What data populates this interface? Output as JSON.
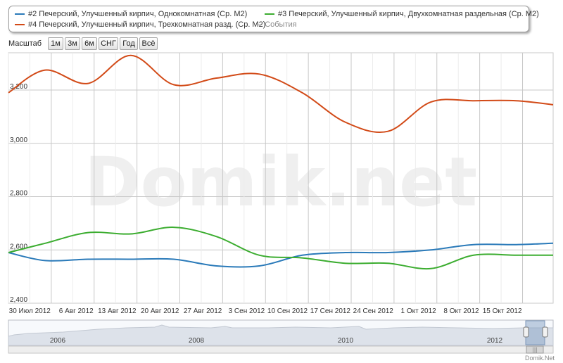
{
  "legend": {
    "items": [
      {
        "label": "#2 Печерский, Улучшенный кирпич, Однокомнатная (Ср. М2)",
        "color": "#2a7ab9"
      },
      {
        "label": "#3 Печерский, Улучшенный кирпич, Двухкомнатная раздельная (Ср. М2)",
        "color": "#3cad30"
      },
      {
        "label": "#4 Печерский, Улучшенный кирпич, Трехкомнатная разд. (Ср. М2)",
        "color": "#d24a17"
      }
    ],
    "events_label": "События",
    "events_color": "#8a8a8a"
  },
  "toolbar": {
    "zoom_label": "Масштаб",
    "buttons": [
      "1м",
      "3м",
      "6м",
      "СНГ",
      "Год",
      "Всё"
    ]
  },
  "watermark": "Domik.net",
  "credit": "Domik.Net",
  "navigator": {
    "years": [
      "2006",
      "2008",
      "2010",
      "2012"
    ],
    "scroll_glyph": "|||"
  },
  "chart_data": {
    "type": "line",
    "title": "",
    "xlabel": "",
    "ylabel": "",
    "ylim": [
      2400,
      3340
    ],
    "xlim": [
      "2012-07-23",
      "2012-10-20"
    ],
    "yticks": [
      2400,
      2600,
      2800,
      3000,
      3200
    ],
    "ytick_labels": [
      "2,400",
      "2,600",
      "2,800",
      "3,000",
      "3,200"
    ],
    "xticks": [
      "2012-07-30",
      "2012-08-06",
      "2012-08-13",
      "2012-08-20",
      "2012-08-27",
      "2012-09-03",
      "2012-09-10",
      "2012-09-17",
      "2012-09-24",
      "2012-10-01",
      "2012-10-08",
      "2012-10-15"
    ],
    "xtick_labels": [
      "30 Июл 2012",
      "6 Авг 2012",
      "13 Авг 2012",
      "20 Авг 2012",
      "27 Авг 2012",
      "3 Сен 2012",
      "10 Сен 2012",
      "17 Сен 2012",
      "24 Сен 2012",
      "1 Окт 2012",
      "8 Окт 2012",
      "15 Окт 2012"
    ],
    "grid": true,
    "legend_position": "top",
    "series": [
      {
        "name": "#2 Печерский, Улучшенный кирпич, Однокомнатная (Ср. М2)",
        "color": "#2a7ab9",
        "x": [
          "2012-07-23",
          "2012-07-29",
          "2012-08-05",
          "2012-08-12",
          "2012-08-19",
          "2012-08-26",
          "2012-09-02",
          "2012-09-09",
          "2012-09-16",
          "2012-09-23",
          "2012-09-30",
          "2012-10-07",
          "2012-10-14",
          "2012-10-20"
        ],
        "values": [
          2590,
          2560,
          2565,
          2565,
          2565,
          2540,
          2540,
          2580,
          2590,
          2590,
          2600,
          2620,
          2620,
          2625
        ]
      },
      {
        "name": "#3 Печерский, Улучшенный кирпич, Двухкомнатная раздельная (Ср. М2)",
        "color": "#3cad30",
        "x": [
          "2012-07-23",
          "2012-07-29",
          "2012-08-05",
          "2012-08-12",
          "2012-08-19",
          "2012-08-26",
          "2012-09-02",
          "2012-09-09",
          "2012-09-16",
          "2012-09-23",
          "2012-09-30",
          "2012-10-07",
          "2012-10-14",
          "2012-10-20"
        ],
        "values": [
          2590,
          2625,
          2665,
          2660,
          2685,
          2650,
          2580,
          2570,
          2550,
          2550,
          2530,
          2580,
          2580,
          2580
        ]
      },
      {
        "name": "#4 Печерский, Улучшенный кирпич, Трехкомнатная разд. (Ср. М2)",
        "color": "#d24a17",
        "x": [
          "2012-07-23",
          "2012-07-29",
          "2012-08-05",
          "2012-08-12",
          "2012-08-19",
          "2012-08-26",
          "2012-09-02",
          "2012-09-09",
          "2012-09-16",
          "2012-09-23",
          "2012-09-30",
          "2012-10-07",
          "2012-10-14",
          "2012-10-20"
        ],
        "values": [
          3190,
          3275,
          3225,
          3330,
          3220,
          3245,
          3260,
          3190,
          3080,
          3045,
          3155,
          3160,
          3160,
          3145
        ]
      }
    ]
  }
}
